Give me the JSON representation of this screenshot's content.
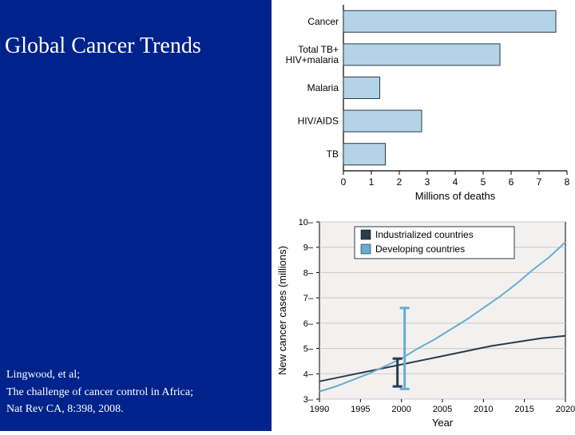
{
  "layout": {
    "panel_color": "#00238b",
    "title": "Global Cancer Trends",
    "title_color": "#ffffff",
    "title_fontsize": 28
  },
  "citation": {
    "line1": "Lingwood, et al;",
    "line2": "The challenge of cancer control in Africa;",
    "line3": "Nat Rev CA, 8:398, 2008."
  },
  "bar_chart": {
    "type": "bar-horizontal",
    "xlabel": "Millions of deaths",
    "label_fontsize": 13,
    "tick_fontsize": 12,
    "categories": [
      "Cancer",
      "Total TB+\nHIV+malaria",
      "Malaria",
      "HIV/AIDS",
      "TB"
    ],
    "values": [
      7.6,
      5.6,
      1.3,
      2.8,
      1.5
    ],
    "bar_fill": "#b5d3e7",
    "bar_stroke": "#2a3b4a",
    "axis_color": "#000000",
    "xlim": [
      0,
      8
    ],
    "xtick_step": 1,
    "plot_bg": "#f6f4f2",
    "background": "#ffffff"
  },
  "line_chart": {
    "type": "line",
    "ylabel": "New cancer cases (millions)",
    "xlabel": "Year",
    "label_fontsize": 13,
    "tick_fontsize": 11,
    "xlim": [
      1990,
      2020
    ],
    "xtick_step": 5,
    "ylim": [
      3,
      10
    ],
    "ytick_step": 1,
    "plot_bg": "#f3f1ef",
    "grid_color": "#c8c8c8",
    "axis_color": "#000000",
    "legend": {
      "items": [
        {
          "label": "Industrialized countries",
          "color": "#2a3b4a"
        },
        {
          "label": "Developing countries",
          "color": "#68acd1"
        }
      ],
      "box_stroke": "#2a3b4a",
      "box_fill": "#ffffff"
    },
    "series": [
      {
        "name": "Industrialized countries",
        "color": "#2a3b4a",
        "width": 2,
        "points": [
          [
            1990,
            3.7
          ],
          [
            1993,
            3.9
          ],
          [
            1996,
            4.1
          ],
          [
            1999,
            4.3
          ],
          [
            2002,
            4.5
          ],
          [
            2005,
            4.7
          ],
          [
            2008,
            4.9
          ],
          [
            2011,
            5.1
          ],
          [
            2014,
            5.25
          ],
          [
            2017,
            5.4
          ],
          [
            2020,
            5.5
          ]
        ]
      },
      {
        "name": "Developing countries",
        "color": "#68acd1",
        "width": 2,
        "points": [
          [
            1990,
            3.3
          ],
          [
            1992,
            3.5
          ],
          [
            1994,
            3.75
          ],
          [
            1996,
            4.0
          ],
          [
            1998,
            4.3
          ],
          [
            2000,
            4.6
          ],
          [
            2002,
            5.0
          ],
          [
            2004,
            5.35
          ],
          [
            2006,
            5.75
          ],
          [
            2008,
            6.15
          ],
          [
            2010,
            6.6
          ],
          [
            2012,
            7.05
          ],
          [
            2014,
            7.55
          ],
          [
            2016,
            8.1
          ],
          [
            2018,
            8.6
          ],
          [
            2020,
            9.2
          ]
        ]
      }
    ],
    "uncertainty_bars": {
      "color_pair": [
        "#2a3b4a",
        "#68acd1"
      ],
      "at_x": 2000,
      "industrialized": {
        "low": 3.5,
        "high": 4.6
      },
      "developing": {
        "low": 3.4,
        "high": 6.6
      }
    }
  }
}
